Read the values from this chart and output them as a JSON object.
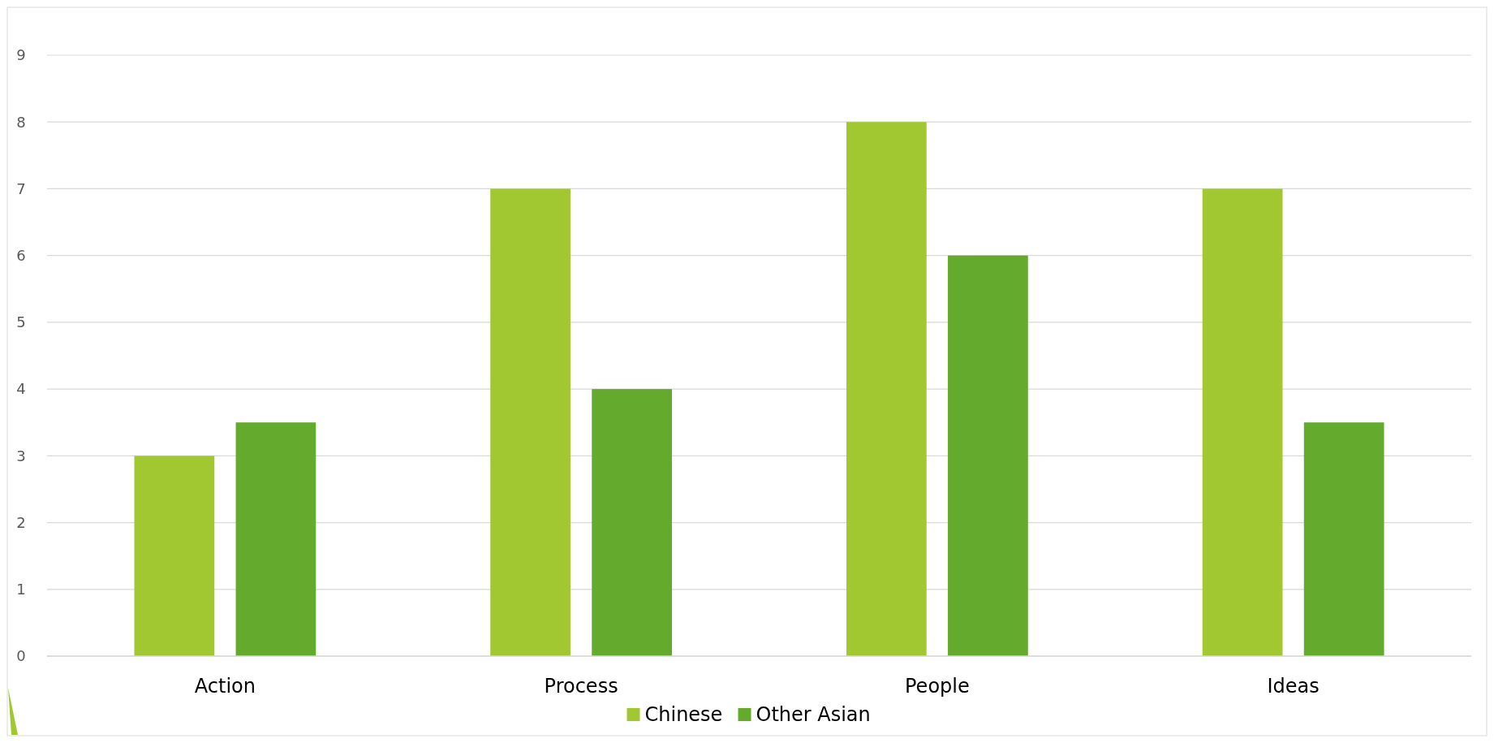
{
  "chart_data": {
    "type": "bar",
    "categories": [
      "Action",
      "Process",
      "People",
      "Ideas"
    ],
    "series": [
      {
        "name": "Chinese",
        "color": "#a2c831",
        "values": [
          3,
          7,
          8,
          7
        ]
      },
      {
        "name": "Other Asian",
        "color": "#63aa2d",
        "values": [
          3.5,
          4,
          6,
          3.5
        ]
      }
    ],
    "ylim": [
      0,
      9
    ],
    "yticks": [
      0,
      1,
      2,
      3,
      4,
      5,
      6,
      7,
      8,
      9
    ],
    "grid": "y",
    "legend": "bottom"
  }
}
